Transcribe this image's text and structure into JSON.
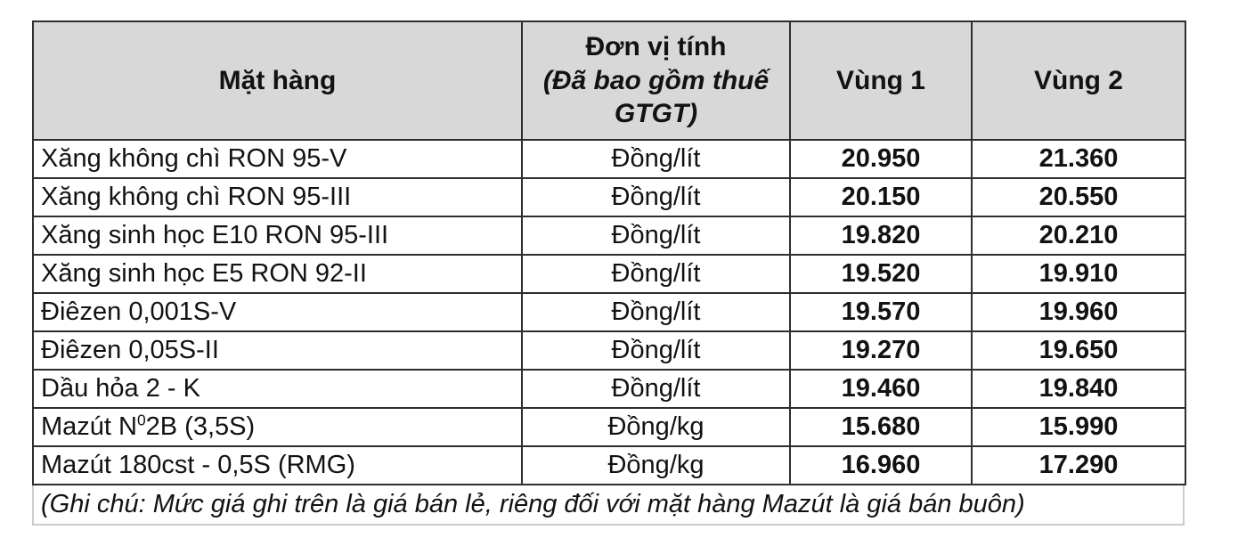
{
  "colors": {
    "header_bg": "#d8d8d8",
    "table_border": "#2e2e2e",
    "note_border": "#cccccc",
    "text": "#121212"
  },
  "table": {
    "headers": {
      "product": "Mặt hàng",
      "unit_line1": "Đơn vị tính",
      "unit_line2": "(Đã bao gồm thuế GTGT)",
      "region1": "Vùng 1",
      "region2": "Vùng 2"
    },
    "rows": [
      {
        "name_pre": "Xăng không chì RON 95-V",
        "name_sup": "",
        "name_post": "",
        "unit": "Đồng/lít",
        "v1": "20.950",
        "v2": "21.360"
      },
      {
        "name_pre": "Xăng không chì RON 95-III",
        "name_sup": "",
        "name_post": "",
        "unit": "Đồng/lít",
        "v1": "20.150",
        "v2": "20.550"
      },
      {
        "name_pre": "Xăng sinh học E10 RON 95-III",
        "name_sup": "",
        "name_post": "",
        "unit": "Đồng/lít",
        "v1": "19.820",
        "v2": "20.210"
      },
      {
        "name_pre": "Xăng sinh học E5 RON 92-II",
        "name_sup": "",
        "name_post": "",
        "unit": "Đồng/lít",
        "v1": "19.520",
        "v2": "19.910"
      },
      {
        "name_pre": "Điêzen 0,001S-V",
        "name_sup": "",
        "name_post": "",
        "unit": "Đồng/lít",
        "v1": "19.570",
        "v2": "19.960"
      },
      {
        "name_pre": "Điêzen 0,05S-II",
        "name_sup": "",
        "name_post": "",
        "unit": "Đồng/lít",
        "v1": "19.270",
        "v2": "19.650"
      },
      {
        "name_pre": "Dầu hỏa 2 - K",
        "name_sup": "",
        "name_post": "",
        "unit": "Đồng/lít",
        "v1": "19.460",
        "v2": "19.840"
      },
      {
        "name_pre": "Mazút N",
        "name_sup": "0",
        "name_post": "2B (3,5S)",
        "unit": "Đồng/kg",
        "v1": "15.680",
        "v2": "15.990"
      },
      {
        "name_pre": "Mazút 180cst - 0,5S (RMG)",
        "name_sup": "",
        "name_post": "",
        "unit": "Đồng/kg",
        "v1": "16.960",
        "v2": "17.290"
      }
    ],
    "note": "(Ghi chú: Mức giá ghi trên là giá bán lẻ, riêng đối với mặt hàng Mazút là giá bán buôn)"
  }
}
